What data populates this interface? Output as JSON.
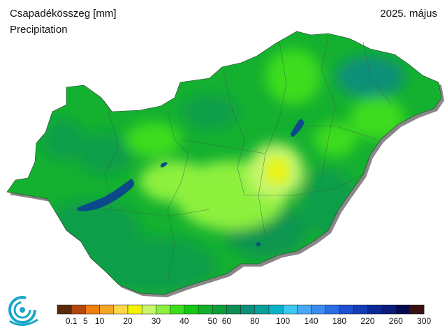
{
  "header": {
    "title": "Csapadékösszeg [mm]",
    "subtitle": "Precipitation",
    "date": "2025. május"
  },
  "legend": {
    "colors": [
      "#5a2a0a",
      "#b3470b",
      "#ef7d10",
      "#f5a623",
      "#ffd84a",
      "#f4f400",
      "#c8f56a",
      "#8cf03c",
      "#3cdc1e",
      "#14c814",
      "#12b02a",
      "#0e9e3a",
      "#0c8f52",
      "#0a9078",
      "#0aa09c",
      "#0ab4c8",
      "#3cc8f0",
      "#46aaf5",
      "#3c8cf0",
      "#2a6ee6",
      "#1e50d2",
      "#143cb4",
      "#0a2896",
      "#0a1a78",
      "#050a50",
      "#3a1010"
    ],
    "tick_labels": [
      "0.1",
      "5",
      "10",
      "20",
      "30",
      "40",
      "50",
      "60",
      "80",
      "100",
      "140",
      "180",
      "220",
      "260",
      "300"
    ],
    "tick_positions": [
      1,
      2,
      3,
      5,
      7,
      9,
      11,
      12,
      14,
      16,
      18,
      20,
      22,
      24,
      26
    ]
  },
  "map": {
    "region": "Hungary",
    "icon": "omsz-logo-icon"
  }
}
